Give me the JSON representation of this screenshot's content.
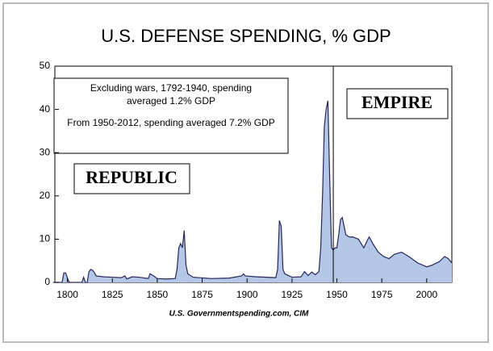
{
  "chart_data": {
    "type": "area",
    "title": "U.S. DEFENSE SPENDING, % GDP",
    "source": "U.S. Governmentspending.com, CIM",
    "note_lines": [
      "Excluding wars, 1792-1940, spending",
      "averaged 1.2% GDP",
      "From 1950-2012, spending averaged 7.2% GDP"
    ],
    "region_labels": [
      "REPUBLIC",
      "EMPIRE"
    ],
    "empire_start": 1948,
    "x": [
      1792,
      1797,
      1798,
      1799,
      1800,
      1801,
      1808,
      1809,
      1810,
      1811,
      1812,
      1813,
      1814,
      1815,
      1816,
      1820,
      1825,
      1830,
      1832,
      1833,
      1836,
      1840,
      1845,
      1846,
      1848,
      1850,
      1855,
      1860,
      1861,
      1862,
      1863,
      1864,
      1865,
      1866,
      1867,
      1870,
      1880,
      1890,
      1897,
      1898,
      1899,
      1905,
      1916,
      1917,
      1918,
      1919,
      1920,
      1921,
      1925,
      1930,
      1932,
      1934,
      1936,
      1938,
      1940,
      1941,
      1942,
      1943,
      1944,
      1945,
      1946,
      1947,
      1948,
      1949,
      1950,
      1951,
      1952,
      1953,
      1954,
      1955,
      1957,
      1959,
      1962,
      1965,
      1967,
      1968,
      1970,
      1973,
      1976,
      1979,
      1982,
      1986,
      1990,
      1995,
      2000,
      2003,
      2007,
      2010,
      2012,
      2014
    ],
    "values": [
      0,
      0,
      2.2,
      2.2,
      1.0,
      0,
      0,
      1.2,
      0,
      0,
      2.5,
      3,
      2.8,
      2.3,
      1.5,
      1.3,
      1.2,
      1.1,
      1.5,
      0.8,
      1.3,
      1.2,
      0.9,
      2,
      1.5,
      0.9,
      0.8,
      0.9,
      3,
      8,
      9,
      8,
      12,
      4,
      2,
      1.2,
      0.9,
      1.0,
      1.5,
      2,
      1.5,
      1.3,
      1.1,
      3,
      14.3,
      13,
      3,
      2,
      1.2,
      1.3,
      2.5,
      1.6,
      2.4,
      1.8,
      2.5,
      8,
      20,
      36,
      40,
      42,
      24,
      8,
      7.5,
      8,
      8,
      11,
      14.5,
      15,
      13,
      11,
      10.5,
      10.5,
      10,
      8,
      9.8,
      10.5,
      9,
      7,
      6,
      5.5,
      6.5,
      7,
      6,
      4.5,
      3.6,
      4,
      4.8,
      6,
      5.5,
      4.5
    ],
    "fill": "#b4c7e7",
    "line_color": "#26265a",
    "xlim": [
      1793,
      2014
    ],
    "xticks": [
      1800,
      1825,
      1850,
      1875,
      1900,
      1925,
      1950,
      1975,
      2000
    ],
    "ylim": [
      0,
      50
    ],
    "yticks": [
      0,
      10,
      20,
      30,
      40,
      50
    ],
    "grid": false
  }
}
